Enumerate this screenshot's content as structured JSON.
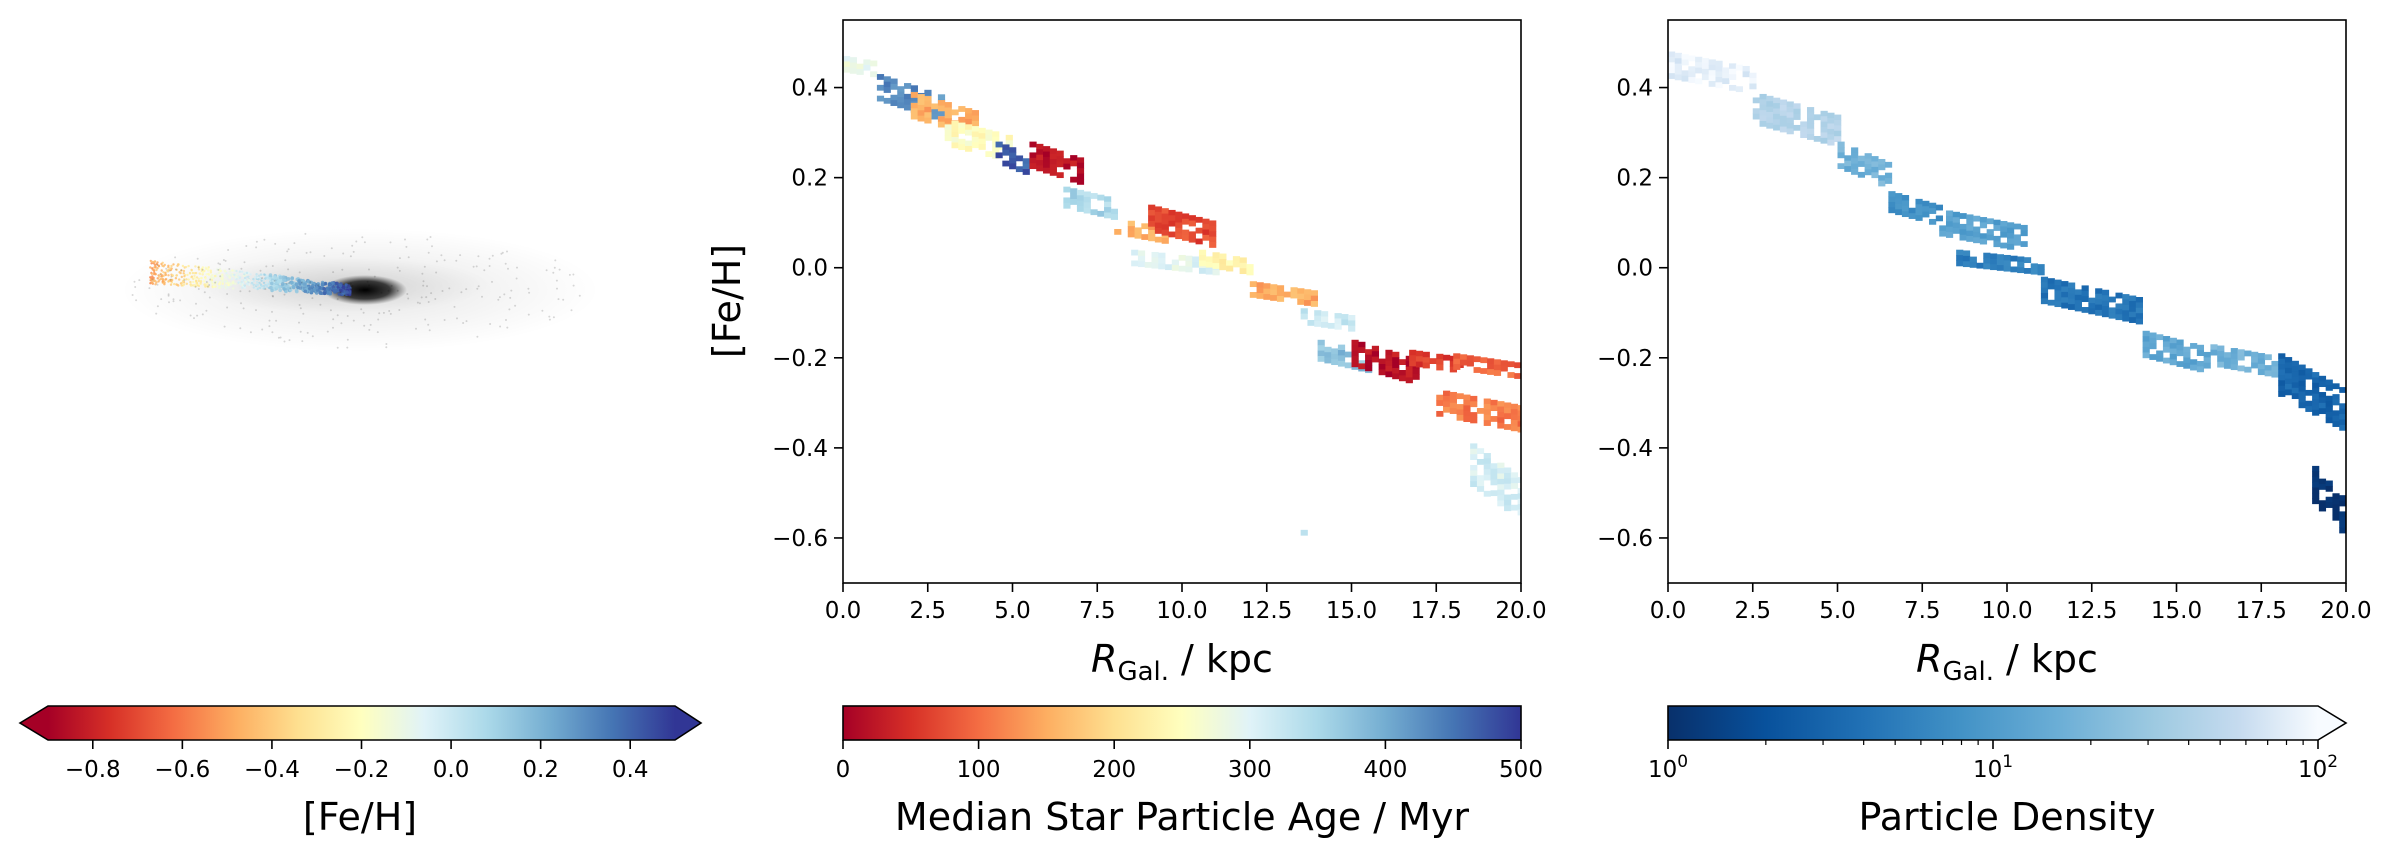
{
  "chart_data": [
    {
      "type": "scatter",
      "panel": "galaxy-projection",
      "title": "",
      "xlabel": "",
      "ylabel": "",
      "grid": false,
      "colorbar": {
        "label": "[Fe/H]",
        "colormap": "RdYlBu",
        "range": [
          -0.9,
          0.5
        ],
        "extend": "both",
        "ticks": [
          -0.8,
          -0.6,
          -0.4,
          -0.2,
          0.0,
          0.2,
          0.4
        ],
        "tick_labels": [
          "−0.8",
          "−0.6",
          "−0.4",
          "−0.2",
          "0.0",
          "0.2",
          "0.4"
        ]
      }
    },
    {
      "type": "heatmap",
      "panel": "median-age",
      "title": "",
      "xlabel_main": "R",
      "xlabel_sub": "Gal.",
      "xlabel_unit": "/ kpc",
      "ylabel": "[Fe/H]",
      "xlim": [
        0,
        20
      ],
      "ylim": [
        -0.7,
        0.55
      ],
      "grid": false,
      "x_ticks": [
        0,
        2.5,
        5,
        7.5,
        10,
        12.5,
        15,
        17.5,
        20
      ],
      "x_tick_labels": [
        "0.0",
        "2.5",
        "5.0",
        "7.5",
        "10.0",
        "12.5",
        "15.0",
        "17.5",
        "20.0"
      ],
      "y_ticks": [
        0.4,
        0.2,
        0.0,
        -0.2,
        -0.4,
        -0.6
      ],
      "y_tick_labels": [
        "0.4",
        "0.2",
        "0.0",
        "−0.2",
        "−0.4",
        "−0.6"
      ],
      "colorbar": {
        "label": "Median Star Particle Age / Myr",
        "colormap": "RdYlBu",
        "range": [
          0,
          500
        ],
        "ticks": [
          0,
          100,
          200,
          300,
          400,
          500
        ],
        "tick_labels": [
          "0",
          "100",
          "200",
          "300",
          "400",
          "500"
        ]
      },
      "regions": [
        {
          "x": [
            0,
            1
          ],
          "y": [
            0.46,
            0.44
          ],
          "age": 280
        },
        {
          "x": [
            1,
            3
          ],
          "y": [
            0.42,
            0.33
          ],
          "age": 430
        },
        {
          "x": [
            2,
            4
          ],
          "y": [
            0.38,
            0.3
          ],
          "age": 150
        },
        {
          "x": [
            3,
            5
          ],
          "y": [
            0.32,
            0.25
          ],
          "age": 250
        },
        {
          "x": [
            4.5,
            5.5
          ],
          "y": [
            0.27,
            0.22
          ],
          "age": 470
        },
        {
          "x": [
            5.5,
            7
          ],
          "y": [
            0.27,
            0.2
          ],
          "age": 20
        },
        {
          "x": [
            6.5,
            8
          ],
          "y": [
            0.17,
            0.12
          ],
          "age": 350
        },
        {
          "x": [
            8,
            9.5
          ],
          "y": [
            0.1,
            0.06
          ],
          "age": 150
        },
        {
          "x": [
            9,
            11
          ],
          "y": [
            0.13,
            0.06
          ],
          "age": 70
        },
        {
          "x": [
            8.5,
            11
          ],
          "y": [
            0.03,
            -0.01
          ],
          "age": 300
        },
        {
          "x": [
            10.5,
            12
          ],
          "y": [
            0.03,
            -0.01
          ],
          "age": 230
        },
        {
          "x": [
            12,
            14
          ],
          "y": [
            -0.04,
            -0.08
          ],
          "age": 150
        },
        {
          "x": [
            13.5,
            15
          ],
          "y": [
            -0.1,
            -0.13
          ],
          "age": 320
        },
        {
          "x": [
            14,
            15.5
          ],
          "y": [
            -0.17,
            -0.22
          ],
          "age": 380
        },
        {
          "x": [
            15,
            17
          ],
          "y": [
            -0.17,
            -0.25
          ],
          "age": 20
        },
        {
          "x": [
            16.5,
            18.5
          ],
          "y": [
            -0.19,
            -0.23
          ],
          "age": 60
        },
        {
          "x": [
            18,
            20
          ],
          "y": [
            -0.2,
            -0.24
          ],
          "age": 90
        },
        {
          "x": [
            17.5,
            20
          ],
          "y": [
            -0.28,
            -0.35
          ],
          "age": 110
        },
        {
          "x": [
            18.5,
            20
          ],
          "y": [
            -0.4,
            -0.55
          ],
          "age": 310
        },
        {
          "x": [
            13.5,
            13.8
          ],
          "y": [
            -0.58,
            -0.58
          ],
          "age": 320
        }
      ]
    },
    {
      "type": "heatmap",
      "panel": "particle-density",
      "title": "",
      "xlabel_main": "R",
      "xlabel_sub": "Gal.",
      "xlabel_unit": "/ kpc",
      "ylabel": "",
      "xlim": [
        0,
        20
      ],
      "ylim": [
        -0.7,
        0.55
      ],
      "grid": false,
      "scale": "log",
      "x_ticks": [
        0,
        2.5,
        5,
        7.5,
        10,
        12.5,
        15,
        17.5,
        20
      ],
      "x_tick_labels": [
        "0.0",
        "2.5",
        "5.0",
        "7.5",
        "10.0",
        "12.5",
        "15.0",
        "17.5",
        "20.0"
      ],
      "y_ticks": [
        0.4,
        0.2,
        0.0,
        -0.2,
        -0.4,
        -0.6
      ],
      "y_tick_labels": [
        "0.4",
        "0.2",
        "0.0",
        "−0.2",
        "−0.4",
        "−0.6"
      ],
      "colorbar": {
        "label": "Particle Density",
        "colormap": "Blues_r",
        "scale": "log",
        "range": [
          1,
          100
        ],
        "extend": "max",
        "major_ticks": [
          1,
          10,
          100
        ],
        "tick_labels": [
          {
            "base": "10",
            "exp": "0"
          },
          {
            "base": "10",
            "exp": "1"
          },
          {
            "base": "10",
            "exp": "2"
          }
        ]
      },
      "regions": [
        {
          "x": [
            0,
            2.5
          ],
          "y": [
            0.47,
            0.4
          ],
          "density": 80
        },
        {
          "x": [
            2.5,
            5
          ],
          "y": [
            0.38,
            0.28
          ],
          "density": 40
        },
        {
          "x": [
            5,
            6.5
          ],
          "y": [
            0.27,
            0.18
          ],
          "density": 15
        },
        {
          "x": [
            6.5,
            8
          ],
          "y": [
            0.16,
            0.1
          ],
          "density": 7
        },
        {
          "x": [
            8,
            10.5
          ],
          "y": [
            0.12,
            0.05
          ],
          "density": 10
        },
        {
          "x": [
            8.5,
            11
          ],
          "y": [
            0.03,
            -0.01
          ],
          "density": 5
        },
        {
          "x": [
            11,
            14
          ],
          "y": [
            -0.03,
            -0.12
          ],
          "density": 4
        },
        {
          "x": [
            14,
            16
          ],
          "y": [
            -0.15,
            -0.22
          ],
          "density": 12
        },
        {
          "x": [
            16,
            18
          ],
          "y": [
            -0.18,
            -0.23
          ],
          "density": 15
        },
        {
          "x": [
            18,
            20
          ],
          "y": [
            -0.2,
            -0.35
          ],
          "density": 3
        },
        {
          "x": [
            19,
            20
          ],
          "y": [
            -0.45,
            -0.58
          ],
          "density": 1
        }
      ]
    }
  ]
}
